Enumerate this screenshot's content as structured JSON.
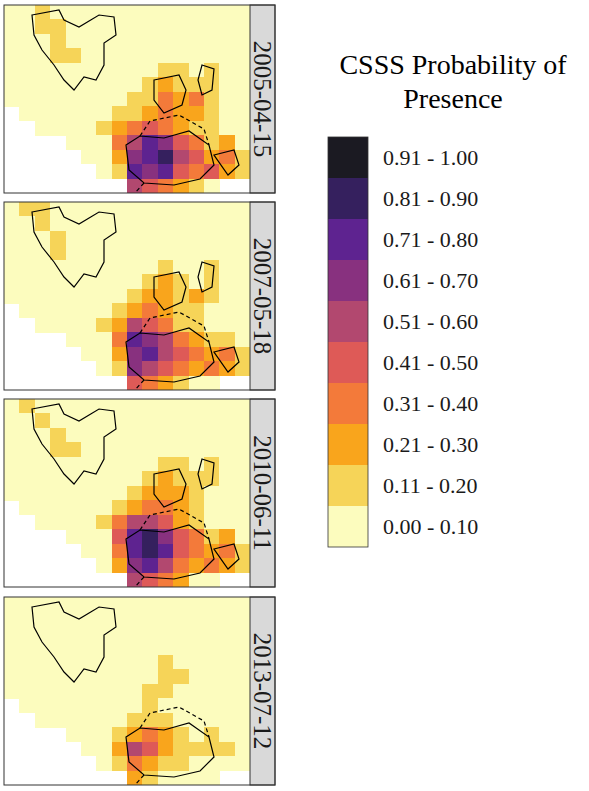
{
  "chart_data": {
    "type": "heatmap",
    "legend_title": "CSSS Probability of Presence",
    "color_classes": [
      {
        "label": "0.91 - 1.00",
        "min": 0.91,
        "max": 1.0,
        "color": "#1b1a22"
      },
      {
        "label": "0.81 - 0.90",
        "min": 0.81,
        "max": 0.9,
        "color": "#35205e"
      },
      {
        "label": "0.71 - 0.80",
        "min": 0.71,
        "max": 0.8,
        "color": "#5e2390"
      },
      {
        "label": "0.61 - 0.70",
        "min": 0.61,
        "max": 0.7,
        "color": "#88317f"
      },
      {
        "label": "0.51 - 0.60",
        "min": 0.51,
        "max": 0.6,
        "color": "#b2486f"
      },
      {
        "label": "0.41 - 0.50",
        "min": 0.41,
        "max": 0.5,
        "color": "#de5a57"
      },
      {
        "label": "0.31 - 0.40",
        "min": 0.31,
        "max": 0.4,
        "color": "#f37a3a"
      },
      {
        "label": "0.21 - 0.30",
        "min": 0.21,
        "max": 0.3,
        "color": "#f9a51c"
      },
      {
        "label": "0.11 - 0.20",
        "min": 0.11,
        "max": 0.2,
        "color": "#f6d458"
      },
      {
        "label": "0.00 - 0.10",
        "min": 0.0,
        "max": 0.1,
        "color": "#fcfcbe"
      }
    ],
    "panels": [
      {
        "date": "2005-04-15",
        "cells": [
          [
            0.05,
            0.05,
            0.15,
            0.05,
            0.05,
            0.05,
            0.05,
            0.05,
            0.05,
            0.05,
            0.05,
            0.05,
            0.05,
            0.05,
            0.05,
            0.05
          ],
          [
            0.05,
            0.05,
            0.15,
            0.15,
            0.05,
            0.05,
            0.05,
            0.05,
            0.05,
            0.05,
            0.05,
            0.05,
            0.05,
            0.05,
            0.05,
            0.05
          ],
          [
            0.05,
            0.05,
            0.05,
            0.15,
            0.05,
            0.05,
            0.05,
            0.05,
            0.05,
            0.05,
            0.05,
            0.05,
            0.05,
            0.05,
            0.05,
            0.05
          ],
          [
            0.05,
            0.05,
            0.05,
            0.15,
            0.15,
            0.05,
            0.05,
            0.05,
            0.05,
            0.05,
            0.05,
            0.05,
            0.05,
            0.05,
            0.05,
            0.05
          ],
          [
            0.05,
            0.05,
            0.05,
            0.05,
            0.05,
            0.05,
            0.05,
            0.05,
            0.05,
            0.05,
            0.15,
            0.15,
            0.05,
            0.15,
            0.05,
            0.05
          ],
          [
            0.05,
            0.05,
            0.05,
            0.05,
            0.05,
            0.05,
            0.05,
            0.05,
            0.05,
            0.15,
            0.25,
            0.15,
            0.15,
            0.15,
            0.05,
            0.05
          ],
          [
            0.05,
            0.05,
            0.05,
            0.05,
            0.05,
            0.05,
            0.05,
            0.05,
            0.15,
            0.15,
            0.35,
            0.25,
            0.35,
            0.15,
            0.05,
            0.05
          ],
          [
            null,
            0.05,
            0.05,
            0.05,
            0.05,
            0.05,
            0.05,
            0.15,
            0.15,
            0.25,
            0.35,
            0.25,
            0.25,
            0.15,
            0.05,
            0.05
          ],
          [
            null,
            null,
            0.05,
            0.05,
            0.05,
            0.05,
            0.15,
            0.25,
            0.35,
            0.45,
            0.35,
            0.25,
            0.15,
            0.15,
            0.05,
            0.05
          ],
          [
            null,
            null,
            null,
            null,
            0.05,
            0.05,
            0.05,
            0.35,
            0.55,
            0.75,
            0.65,
            0.45,
            0.35,
            0.15,
            0.25,
            0.05
          ],
          [
            null,
            null,
            null,
            null,
            null,
            0.05,
            0.05,
            0.25,
            0.65,
            0.75,
            0.85,
            0.55,
            0.45,
            0.25,
            0.35,
            0.15
          ],
          [
            null,
            null,
            null,
            null,
            null,
            null,
            0.05,
            0.15,
            0.75,
            0.65,
            0.75,
            0.45,
            0.35,
            0.45,
            0.25,
            0.15
          ],
          [
            null,
            null,
            null,
            null,
            null,
            null,
            null,
            null,
            0.55,
            0.45,
            0.35,
            0.25,
            0.15,
            0.05,
            null,
            null
          ]
        ]
      },
      {
        "date": "2007-05-18",
        "cells": [
          [
            0.05,
            0.15,
            0.15,
            0.05,
            0.05,
            0.05,
            0.05,
            0.05,
            0.05,
            0.05,
            0.05,
            0.05,
            0.05,
            0.05,
            0.05,
            0.05
          ],
          [
            0.05,
            0.05,
            0.15,
            0.05,
            0.05,
            0.05,
            0.05,
            0.05,
            0.05,
            0.05,
            0.05,
            0.05,
            0.05,
            0.05,
            0.05,
            0.05
          ],
          [
            0.05,
            0.05,
            0.05,
            0.15,
            0.05,
            0.05,
            0.05,
            0.05,
            0.05,
            0.05,
            0.05,
            0.05,
            0.05,
            0.05,
            0.05,
            0.05
          ],
          [
            0.05,
            0.05,
            0.05,
            0.15,
            0.05,
            0.05,
            0.05,
            0.05,
            0.05,
            0.05,
            0.05,
            0.05,
            0.05,
            0.05,
            0.05,
            0.05
          ],
          [
            0.05,
            0.05,
            0.05,
            0.05,
            0.05,
            0.05,
            0.05,
            0.05,
            0.05,
            0.05,
            0.15,
            0.05,
            0.05,
            0.15,
            0.05,
            0.05
          ],
          [
            0.05,
            0.05,
            0.05,
            0.05,
            0.05,
            0.05,
            0.05,
            0.05,
            0.05,
            0.15,
            0.25,
            0.15,
            0.05,
            0.15,
            0.05,
            0.05
          ],
          [
            0.05,
            0.05,
            0.05,
            0.05,
            0.05,
            0.05,
            0.05,
            0.05,
            0.15,
            0.25,
            0.25,
            0.15,
            0.25,
            0.15,
            0.05,
            0.05
          ],
          [
            null,
            0.05,
            0.05,
            0.05,
            0.05,
            0.05,
            0.05,
            0.15,
            0.25,
            0.35,
            0.25,
            0.15,
            0.15,
            0.05,
            0.05,
            0.05
          ],
          [
            null,
            null,
            0.05,
            0.05,
            0.05,
            0.05,
            0.15,
            0.25,
            0.55,
            0.45,
            0.35,
            0.15,
            0.15,
            0.05,
            0.05,
            0.05
          ],
          [
            null,
            null,
            null,
            null,
            0.05,
            0.05,
            0.05,
            0.35,
            0.75,
            0.65,
            0.55,
            0.35,
            0.25,
            0.15,
            0.15,
            0.05
          ],
          [
            null,
            null,
            null,
            null,
            null,
            0.05,
            0.05,
            0.25,
            0.65,
            0.75,
            0.55,
            0.45,
            0.35,
            0.25,
            0.35,
            0.15
          ],
          [
            null,
            null,
            null,
            null,
            null,
            null,
            0.05,
            0.15,
            0.65,
            0.55,
            0.45,
            0.35,
            0.25,
            0.35,
            0.25,
            0.15
          ],
          [
            null,
            null,
            null,
            null,
            null,
            null,
            null,
            null,
            0.45,
            0.35,
            0.25,
            0.15,
            0.05,
            0.05,
            null,
            null
          ]
        ]
      },
      {
        "date": "2010-06-11",
        "cells": [
          [
            0.05,
            0.15,
            0.05,
            0.05,
            0.05,
            0.05,
            0.05,
            0.05,
            0.05,
            0.05,
            0.05,
            0.05,
            0.05,
            0.05,
            0.05,
            0.05
          ],
          [
            0.05,
            0.05,
            0.15,
            0.05,
            0.05,
            0.05,
            0.05,
            0.05,
            0.05,
            0.05,
            0.05,
            0.05,
            0.05,
            0.05,
            0.05,
            0.05
          ],
          [
            0.05,
            0.05,
            0.05,
            0.15,
            0.05,
            0.05,
            0.05,
            0.05,
            0.05,
            0.05,
            0.05,
            0.05,
            0.05,
            0.05,
            0.05,
            0.05
          ],
          [
            0.05,
            0.05,
            0.05,
            0.15,
            0.15,
            0.05,
            0.05,
            0.05,
            0.05,
            0.05,
            0.05,
            0.05,
            0.05,
            0.05,
            0.05,
            0.05
          ],
          [
            0.05,
            0.05,
            0.05,
            0.05,
            0.05,
            0.05,
            0.05,
            0.05,
            0.05,
            0.05,
            0.15,
            0.15,
            0.05,
            0.15,
            0.05,
            0.05
          ],
          [
            0.05,
            0.05,
            0.05,
            0.05,
            0.05,
            0.05,
            0.05,
            0.05,
            0.05,
            0.15,
            0.25,
            0.15,
            0.15,
            0.15,
            0.05,
            0.05
          ],
          [
            0.05,
            0.05,
            0.05,
            0.05,
            0.05,
            0.05,
            0.05,
            0.05,
            0.15,
            0.25,
            0.25,
            0.25,
            0.15,
            0.05,
            0.05,
            0.05
          ],
          [
            null,
            0.05,
            0.05,
            0.05,
            0.05,
            0.05,
            0.05,
            0.15,
            0.25,
            0.35,
            0.35,
            0.25,
            0.15,
            0.05,
            0.05,
            0.05
          ],
          [
            null,
            null,
            0.05,
            0.05,
            0.05,
            0.05,
            0.15,
            0.35,
            0.55,
            0.55,
            0.45,
            0.25,
            0.15,
            0.05,
            0.05,
            0.05
          ],
          [
            null,
            null,
            null,
            null,
            0.05,
            0.05,
            0.05,
            0.45,
            0.75,
            0.85,
            0.65,
            0.45,
            0.35,
            0.15,
            0.25,
            0.05
          ],
          [
            null,
            null,
            null,
            null,
            null,
            0.05,
            0.05,
            0.35,
            0.75,
            0.85,
            0.75,
            0.45,
            0.35,
            0.25,
            0.35,
            0.15
          ],
          [
            null,
            null,
            null,
            null,
            null,
            null,
            0.05,
            0.25,
            0.65,
            0.75,
            0.55,
            0.35,
            0.25,
            0.35,
            0.25,
            0.15
          ],
          [
            null,
            null,
            null,
            null,
            null,
            null,
            null,
            null,
            0.55,
            0.45,
            0.35,
            0.25,
            0.05,
            0.05,
            null,
            null
          ]
        ]
      },
      {
        "date": "2013-07-12",
        "cells": [
          [
            0.05,
            0.05,
            0.05,
            0.05,
            0.05,
            0.05,
            0.05,
            0.05,
            0.05,
            0.05,
            0.05,
            0.05,
            0.05,
            0.05,
            0.05,
            0.05
          ],
          [
            0.05,
            0.05,
            0.05,
            0.05,
            0.05,
            0.05,
            0.05,
            0.05,
            0.05,
            0.05,
            0.05,
            0.05,
            0.05,
            0.05,
            0.05,
            0.05
          ],
          [
            0.05,
            0.05,
            0.05,
            0.05,
            0.05,
            0.05,
            0.05,
            0.05,
            0.05,
            0.05,
            0.05,
            0.05,
            0.05,
            0.05,
            0.05,
            0.05
          ],
          [
            0.05,
            0.05,
            0.05,
            0.05,
            0.05,
            0.05,
            0.05,
            0.05,
            0.05,
            0.05,
            0.05,
            0.05,
            0.05,
            0.05,
            0.05,
            0.05
          ],
          [
            0.05,
            0.05,
            0.05,
            0.05,
            0.05,
            0.05,
            0.05,
            0.05,
            0.05,
            0.05,
            0.15,
            0.05,
            0.05,
            0.05,
            0.05,
            0.05
          ],
          [
            0.05,
            0.05,
            0.05,
            0.05,
            0.05,
            0.05,
            0.05,
            0.05,
            0.05,
            0.05,
            0.15,
            0.15,
            0.05,
            0.05,
            0.05,
            0.05
          ],
          [
            0.05,
            0.05,
            0.05,
            0.05,
            0.05,
            0.05,
            0.05,
            0.05,
            0.05,
            0.15,
            0.15,
            0.05,
            0.05,
            0.05,
            0.05,
            0.05
          ],
          [
            null,
            0.05,
            0.05,
            0.05,
            0.05,
            0.05,
            0.05,
            0.05,
            0.05,
            0.15,
            0.05,
            0.05,
            0.05,
            0.05,
            0.05,
            0.05
          ],
          [
            null,
            null,
            0.05,
            0.05,
            0.05,
            0.05,
            0.05,
            0.05,
            0.15,
            0.15,
            0.15,
            0.05,
            0.05,
            0.05,
            0.05,
            0.05
          ],
          [
            null,
            null,
            null,
            null,
            0.05,
            0.05,
            0.05,
            0.15,
            0.25,
            0.35,
            0.25,
            0.15,
            0.05,
            0.15,
            0.05,
            0.05
          ],
          [
            null,
            null,
            null,
            null,
            null,
            0.05,
            0.05,
            0.25,
            0.55,
            0.45,
            0.25,
            0.15,
            0.15,
            0.15,
            0.15,
            0.05
          ],
          [
            null,
            null,
            null,
            null,
            null,
            null,
            0.05,
            0.15,
            0.35,
            0.25,
            0.15,
            0.15,
            0.05,
            0.05,
            0.05,
            0.05
          ],
          [
            null,
            null,
            null,
            null,
            null,
            null,
            null,
            null,
            0.25,
            0.15,
            0.05,
            0.05,
            0.05,
            0.05,
            null,
            null
          ]
        ]
      }
    ]
  }
}
